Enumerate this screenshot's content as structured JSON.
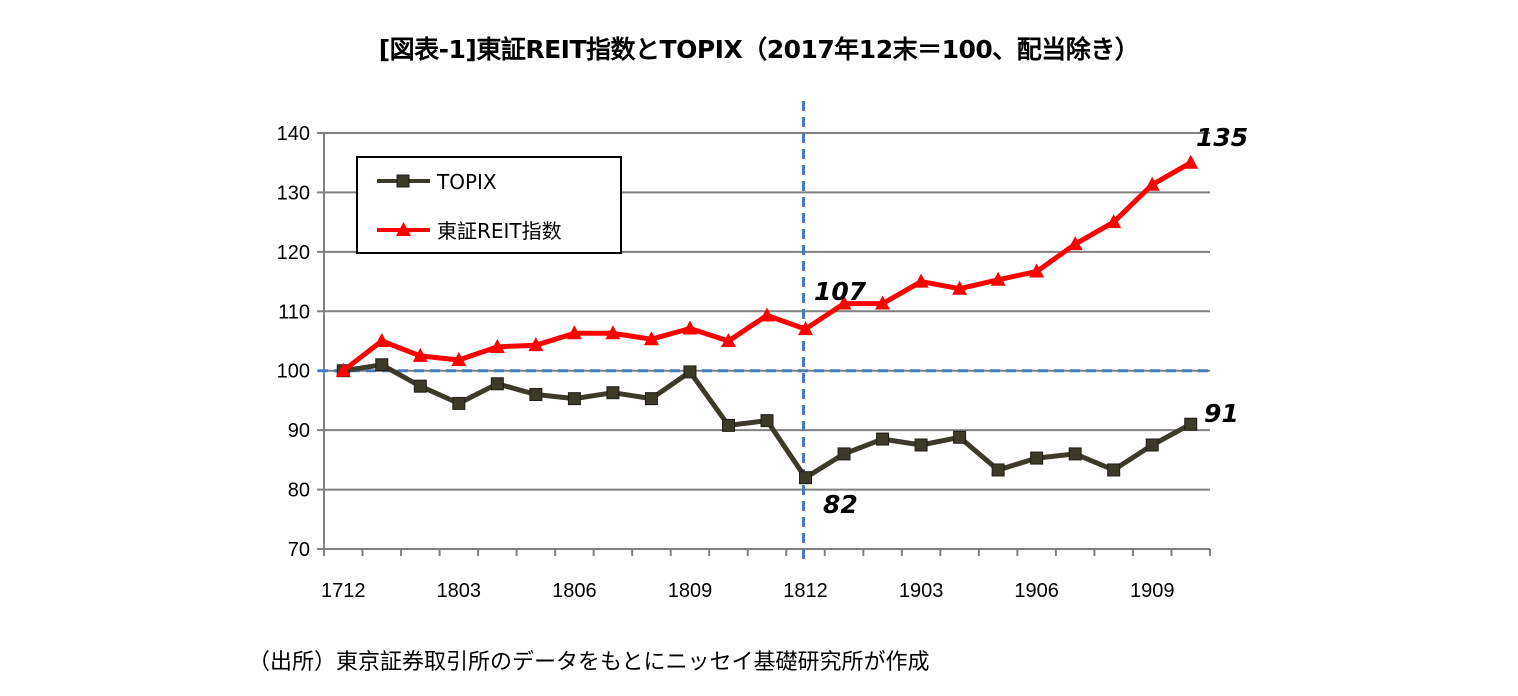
{
  "page": {
    "title": "[図表-1]東証REIT指数とTOPIX（2017年12末＝100、配当除き）",
    "source": "（出所）東京証券取引所のデータをもとにニッセイ基礎研究所が作成"
  },
  "chart_data": {
    "type": "line",
    "title": "[図表-1]東証REIT指数とTOPIX（2017年12末＝100、配当除き）",
    "x": [
      "1712",
      "1801",
      "1802",
      "1803",
      "1804",
      "1805",
      "1806",
      "1807",
      "1808",
      "1809",
      "1810",
      "1811",
      "1812",
      "1901",
      "1902",
      "1903",
      "1904",
      "1905",
      "1906",
      "1907",
      "1908",
      "1909",
      "1910"
    ],
    "x_tick_labels": [
      "1712",
      "1803",
      "1806",
      "1809",
      "1812",
      "1903",
      "1906",
      "1909"
    ],
    "ylim": [
      70,
      140
    ],
    "y_ticks": [
      70,
      80,
      90,
      100,
      110,
      120,
      130,
      140
    ],
    "grid": true,
    "legend_position": "top-left",
    "series": [
      {
        "name": "TOPIX",
        "color": "#3d3a2a",
        "marker": "square",
        "values": [
          100,
          101.0,
          97.4,
          94.5,
          97.8,
          96.0,
          95.3,
          96.3,
          95.3,
          99.8,
          90.8,
          91.6,
          82,
          86.0,
          88.5,
          87.5,
          88.8,
          83.3,
          85.3,
          86.0,
          83.3,
          87.5,
          91
        ]
      },
      {
        "name": "東証REIT指数",
        "color": "#ff0000",
        "marker": "triangle",
        "values": [
          100,
          105.0,
          102.5,
          101.8,
          104.0,
          104.3,
          106.3,
          106.3,
          105.3,
          107.1,
          105.0,
          109.3,
          107,
          111.3,
          111.3,
          115.0,
          113.8,
          115.3,
          116.7,
          121.3,
          125.0,
          131.3,
          135
        ]
      }
    ],
    "annotations": {
      "reit_end": "135",
      "reit_mid": "107",
      "topix_mid": "82",
      "topix_end": "91"
    },
    "reference_lines": {
      "horizontal_value": 100,
      "vertical_category": "1812"
    }
  }
}
